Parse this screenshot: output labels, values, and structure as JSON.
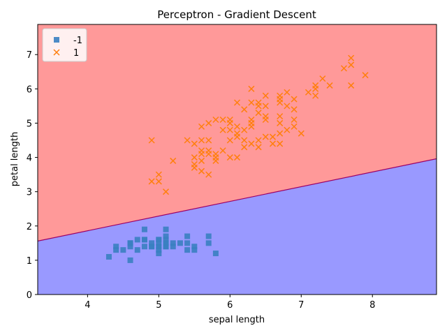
{
  "chart_data": {
    "type": "scatter",
    "title": "Perceptron - Gradient Descent",
    "xlabel": "sepal length",
    "ylabel": "petal length",
    "xlim": [
      3.3,
      8.9
    ],
    "ylim": [
      0,
      7.88
    ],
    "xticks": [
      4,
      5,
      6,
      7,
      8
    ],
    "yticks": [
      0,
      1,
      2,
      3,
      4,
      5,
      6,
      7
    ],
    "legend_position": "top-left",
    "decision_boundary": {
      "points": [
        [
          3.3,
          1.56
        ],
        [
          8.9,
          3.96
        ]
      ],
      "region_above": {
        "label": "1",
        "color": "#ff9999"
      },
      "region_below": {
        "label": "-1",
        "color": "#9999ff"
      },
      "line_color": "#990066"
    },
    "series": [
      {
        "name": "-1",
        "marker": "square",
        "color": "#3a7fc1",
        "points": [
          [
            4.3,
            1.1
          ],
          [
            4.4,
            1.4
          ],
          [
            4.4,
            1.3
          ],
          [
            4.5,
            1.3
          ],
          [
            4.6,
            1.5
          ],
          [
            4.6,
            1.4
          ],
          [
            4.6,
            1.0
          ],
          [
            4.6,
            1.5
          ],
          [
            4.7,
            1.6
          ],
          [
            4.7,
            1.3
          ],
          [
            4.8,
            1.6
          ],
          [
            4.8,
            1.4
          ],
          [
            4.8,
            1.9
          ],
          [
            4.8,
            1.6
          ],
          [
            4.9,
            1.4
          ],
          [
            4.9,
            1.5
          ],
          [
            4.9,
            1.4
          ],
          [
            5.0,
            1.4
          ],
          [
            5.0,
            1.5
          ],
          [
            5.0,
            1.6
          ],
          [
            5.0,
            1.2
          ],
          [
            5.0,
            1.3
          ],
          [
            5.0,
            1.6
          ],
          [
            5.0,
            1.4
          ],
          [
            5.1,
            1.4
          ],
          [
            5.1,
            1.5
          ],
          [
            5.1,
            1.7
          ],
          [
            5.1,
            1.9
          ],
          [
            5.1,
            1.6
          ],
          [
            5.1,
            1.5
          ],
          [
            5.1,
            1.4
          ],
          [
            5.2,
            1.5
          ],
          [
            5.2,
            1.4
          ],
          [
            5.3,
            1.5
          ],
          [
            5.4,
            1.7
          ],
          [
            5.4,
            1.5
          ],
          [
            5.4,
            1.3
          ],
          [
            5.5,
            1.4
          ],
          [
            5.5,
            1.3
          ],
          [
            5.7,
            1.7
          ],
          [
            5.7,
            1.5
          ],
          [
            5.8,
            1.2
          ]
        ]
      },
      {
        "name": "1",
        "marker": "x",
        "color": "#ff7f0e",
        "points": [
          [
            4.9,
            4.5
          ],
          [
            4.9,
            3.3
          ],
          [
            5.0,
            3.5
          ],
          [
            5.0,
            3.3
          ],
          [
            5.1,
            3.0
          ],
          [
            5.2,
            3.9
          ],
          [
            5.4,
            4.5
          ],
          [
            5.5,
            4.0
          ],
          [
            5.5,
            3.8
          ],
          [
            5.5,
            3.7
          ],
          [
            5.5,
            4.4
          ],
          [
            5.6,
            4.1
          ],
          [
            5.6,
            4.5
          ],
          [
            5.6,
            3.9
          ],
          [
            5.6,
            4.2
          ],
          [
            5.6,
            3.6
          ],
          [
            5.6,
            4.9
          ],
          [
            5.7,
            4.5
          ],
          [
            5.7,
            3.5
          ],
          [
            5.7,
            4.2
          ],
          [
            5.7,
            4.1
          ],
          [
            5.7,
            5.0
          ],
          [
            5.8,
            4.0
          ],
          [
            5.8,
            3.9
          ],
          [
            5.8,
            4.1
          ],
          [
            5.8,
            5.1
          ],
          [
            5.9,
            4.8
          ],
          [
            5.9,
            4.2
          ],
          [
            5.9,
            5.1
          ],
          [
            6.0,
            4.5
          ],
          [
            6.0,
            4.0
          ],
          [
            6.0,
            5.1
          ],
          [
            6.0,
            4.8
          ],
          [
            6.0,
            5.0
          ],
          [
            6.1,
            4.7
          ],
          [
            6.1,
            4.0
          ],
          [
            6.1,
            4.6
          ],
          [
            6.1,
            5.6
          ],
          [
            6.1,
            4.9
          ],
          [
            6.2,
            4.5
          ],
          [
            6.2,
            4.3
          ],
          [
            6.2,
            4.8
          ],
          [
            6.2,
            5.4
          ],
          [
            6.3,
            4.9
          ],
          [
            6.3,
            4.4
          ],
          [
            6.3,
            5.0
          ],
          [
            6.3,
            5.1
          ],
          [
            6.3,
            5.6
          ],
          [
            6.3,
            6.0
          ],
          [
            6.4,
            4.5
          ],
          [
            6.4,
            4.3
          ],
          [
            6.4,
            5.3
          ],
          [
            6.4,
            5.5
          ],
          [
            6.4,
            5.6
          ],
          [
            6.5,
            4.6
          ],
          [
            6.5,
            5.1
          ],
          [
            6.5,
            5.2
          ],
          [
            6.5,
            5.5
          ],
          [
            6.5,
            5.8
          ],
          [
            6.6,
            4.6
          ],
          [
            6.6,
            4.4
          ],
          [
            6.7,
            4.7
          ],
          [
            6.7,
            4.4
          ],
          [
            6.7,
            5.0
          ],
          [
            6.7,
            5.2
          ],
          [
            6.7,
            5.6
          ],
          [
            6.7,
            5.7
          ],
          [
            6.7,
            5.8
          ],
          [
            6.8,
            4.8
          ],
          [
            6.8,
            5.5
          ],
          [
            6.8,
            5.9
          ],
          [
            6.9,
            4.9
          ],
          [
            6.9,
            5.1
          ],
          [
            6.9,
            5.4
          ],
          [
            6.9,
            5.7
          ],
          [
            7.0,
            4.7
          ],
          [
            7.1,
            5.9
          ],
          [
            7.2,
            6.0
          ],
          [
            7.2,
            5.8
          ],
          [
            7.2,
            6.1
          ],
          [
            7.3,
            6.3
          ],
          [
            7.4,
            6.1
          ],
          [
            7.6,
            6.6
          ],
          [
            7.7,
            6.9
          ],
          [
            7.7,
            6.7
          ],
          [
            7.7,
            6.1
          ],
          [
            7.9,
            6.4
          ]
        ]
      }
    ]
  }
}
